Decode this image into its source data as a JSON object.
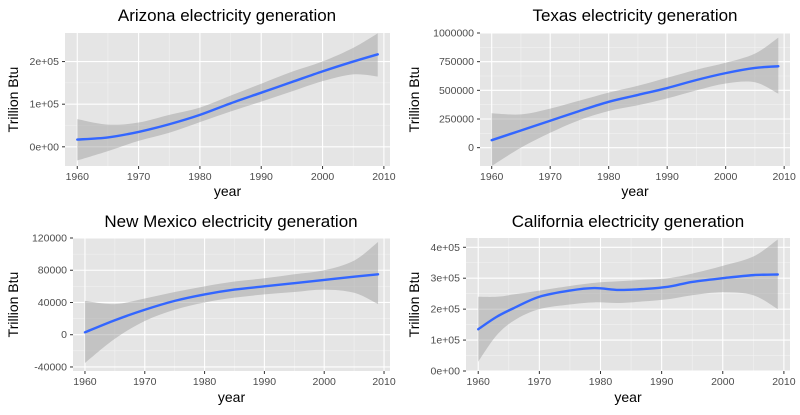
{
  "chart_data": [
    {
      "type": "line",
      "title": "Arizona electricity generation",
      "xlabel": "year",
      "ylabel": "Trillion Btu",
      "xlim": [
        1958,
        2011
      ],
      "ylim": [
        -45000,
        267000
      ],
      "xticks": [
        1960,
        1970,
        1980,
        1990,
        2000,
        2010
      ],
      "xtick_labels": [
        "1960",
        "1970",
        "1980",
        "1990",
        "2000",
        "2010"
      ],
      "yticks": [
        0,
        100000,
        200000
      ],
      "ytick_labels": [
        "0e+00",
        "1e+05",
        "2e+05"
      ],
      "grid": true,
      "background": "#e5e5e5",
      "line_color": "#3366ff",
      "band_color": "#999999",
      "series": [
        {
          "x": [
            1960,
            1965,
            1970,
            1975,
            1980,
            1985,
            1990,
            1995,
            2000,
            2005,
            2009
          ],
          "values": [
            17000,
            22000,
            35000,
            53000,
            75000,
            102000,
            127000,
            152000,
            177000,
            200000,
            217000
          ],
          "lower": [
            -32000,
            -10000,
            14000,
            33000,
            58000,
            83000,
            106000,
            130000,
            154000,
            170000,
            165000
          ],
          "upper": [
            65000,
            52000,
            57000,
            75000,
            92000,
            120000,
            148000,
            176000,
            200000,
            232000,
            266000
          ]
        }
      ]
    },
    {
      "type": "line",
      "title": "Texas electricity generation",
      "xlabel": "year",
      "ylabel": "Trillion Btu",
      "xlim": [
        1958,
        2011
      ],
      "ylim": [
        -160000,
        1000000
      ],
      "xticks": [
        1960,
        1970,
        1980,
        1990,
        2000,
        2010
      ],
      "xtick_labels": [
        "1960",
        "1970",
        "1980",
        "1990",
        "2000",
        "2010"
      ],
      "yticks": [
        0,
        250000,
        500000,
        750000,
        1000000
      ],
      "ytick_labels": [
        "0",
        "250000",
        "500000",
        "750000",
        "1000000"
      ],
      "grid": true,
      "background": "#e5e5e5",
      "line_color": "#3366ff",
      "band_color": "#999999",
      "series": [
        {
          "x": [
            1960,
            1965,
            1970,
            1975,
            1980,
            1985,
            1990,
            1995,
            2000,
            2005,
            2009
          ],
          "values": [
            65000,
            150000,
            235000,
            320000,
            400000,
            460000,
            520000,
            590000,
            650000,
            695000,
            710000
          ],
          "lower": [
            -160000,
            0,
            130000,
            240000,
            320000,
            370000,
            430000,
            500000,
            560000,
            570000,
            470000
          ],
          "upper": [
            300000,
            290000,
            340000,
            410000,
            480000,
            540000,
            610000,
            680000,
            740000,
            820000,
            960000
          ]
        }
      ]
    },
    {
      "type": "line",
      "title": "New Mexico electricity generation",
      "xlabel": "year",
      "ylabel": "Trillion Btu",
      "xlim": [
        1958,
        2011
      ],
      "ylim": [
        -45000,
        120000
      ],
      "xticks": [
        1960,
        1970,
        1980,
        1990,
        2000,
        2010
      ],
      "xtick_labels": [
        "1960",
        "1970",
        "1980",
        "1990",
        "2000",
        "2010"
      ],
      "yticks": [
        -40000,
        0,
        40000,
        80000,
        120000
      ],
      "ytick_labels": [
        "-40000",
        "0",
        "40000",
        "80000",
        "120000"
      ],
      "grid": true,
      "background": "#e5e5e5",
      "line_color": "#3366ff",
      "band_color": "#999999",
      "series": [
        {
          "x": [
            1960,
            1965,
            1970,
            1975,
            1980,
            1985,
            1990,
            1995,
            2000,
            2005,
            2009
          ],
          "values": [
            3000,
            18000,
            31000,
            42000,
            50000,
            56000,
            60000,
            64000,
            68000,
            72000,
            75000
          ],
          "lower": [
            -35000,
            -5000,
            17000,
            31000,
            40000,
            46000,
            50000,
            53000,
            56000,
            52000,
            38000
          ],
          "upper": [
            42000,
            38000,
            45000,
            53000,
            60000,
            66000,
            70000,
            75000,
            80000,
            92000,
            115000
          ]
        }
      ]
    },
    {
      "type": "line",
      "title": "California electricity generation",
      "xlabel": "year",
      "ylabel": "Trillion Btu",
      "xlim": [
        1958,
        2011
      ],
      "ylim": [
        0,
        430000
      ],
      "xticks": [
        1960,
        1970,
        1980,
        1990,
        2000,
        2010
      ],
      "xtick_labels": [
        "1960",
        "1970",
        "1980",
        "1990",
        "2000",
        "2010"
      ],
      "yticks": [
        0,
        100000,
        200000,
        300000,
        400000
      ],
      "ytick_labels": [
        "0e+00",
        "1e+05",
        "2e+05",
        "3e+05",
        "4e+05"
      ],
      "grid": true,
      "background": "#e5e5e5",
      "line_color": "#3366ff",
      "band_color": "#999999",
      "series": [
        {
          "x": [
            1960,
            1963,
            1966,
            1970,
            1975,
            1979,
            1983,
            1987,
            1991,
            1995,
            2000,
            2005,
            2009
          ],
          "values": [
            135000,
            175000,
            205000,
            240000,
            260000,
            268000,
            262000,
            265000,
            272000,
            288000,
            300000,
            310000,
            312000
          ],
          "lower": [
            30000,
            115000,
            165000,
            200000,
            215000,
            222000,
            220000,
            225000,
            232000,
            245000,
            255000,
            245000,
            200000
          ],
          "upper": [
            240000,
            240000,
            248000,
            260000,
            275000,
            285000,
            290000,
            295000,
            300000,
            315000,
            340000,
            370000,
            425000
          ]
        }
      ]
    }
  ]
}
